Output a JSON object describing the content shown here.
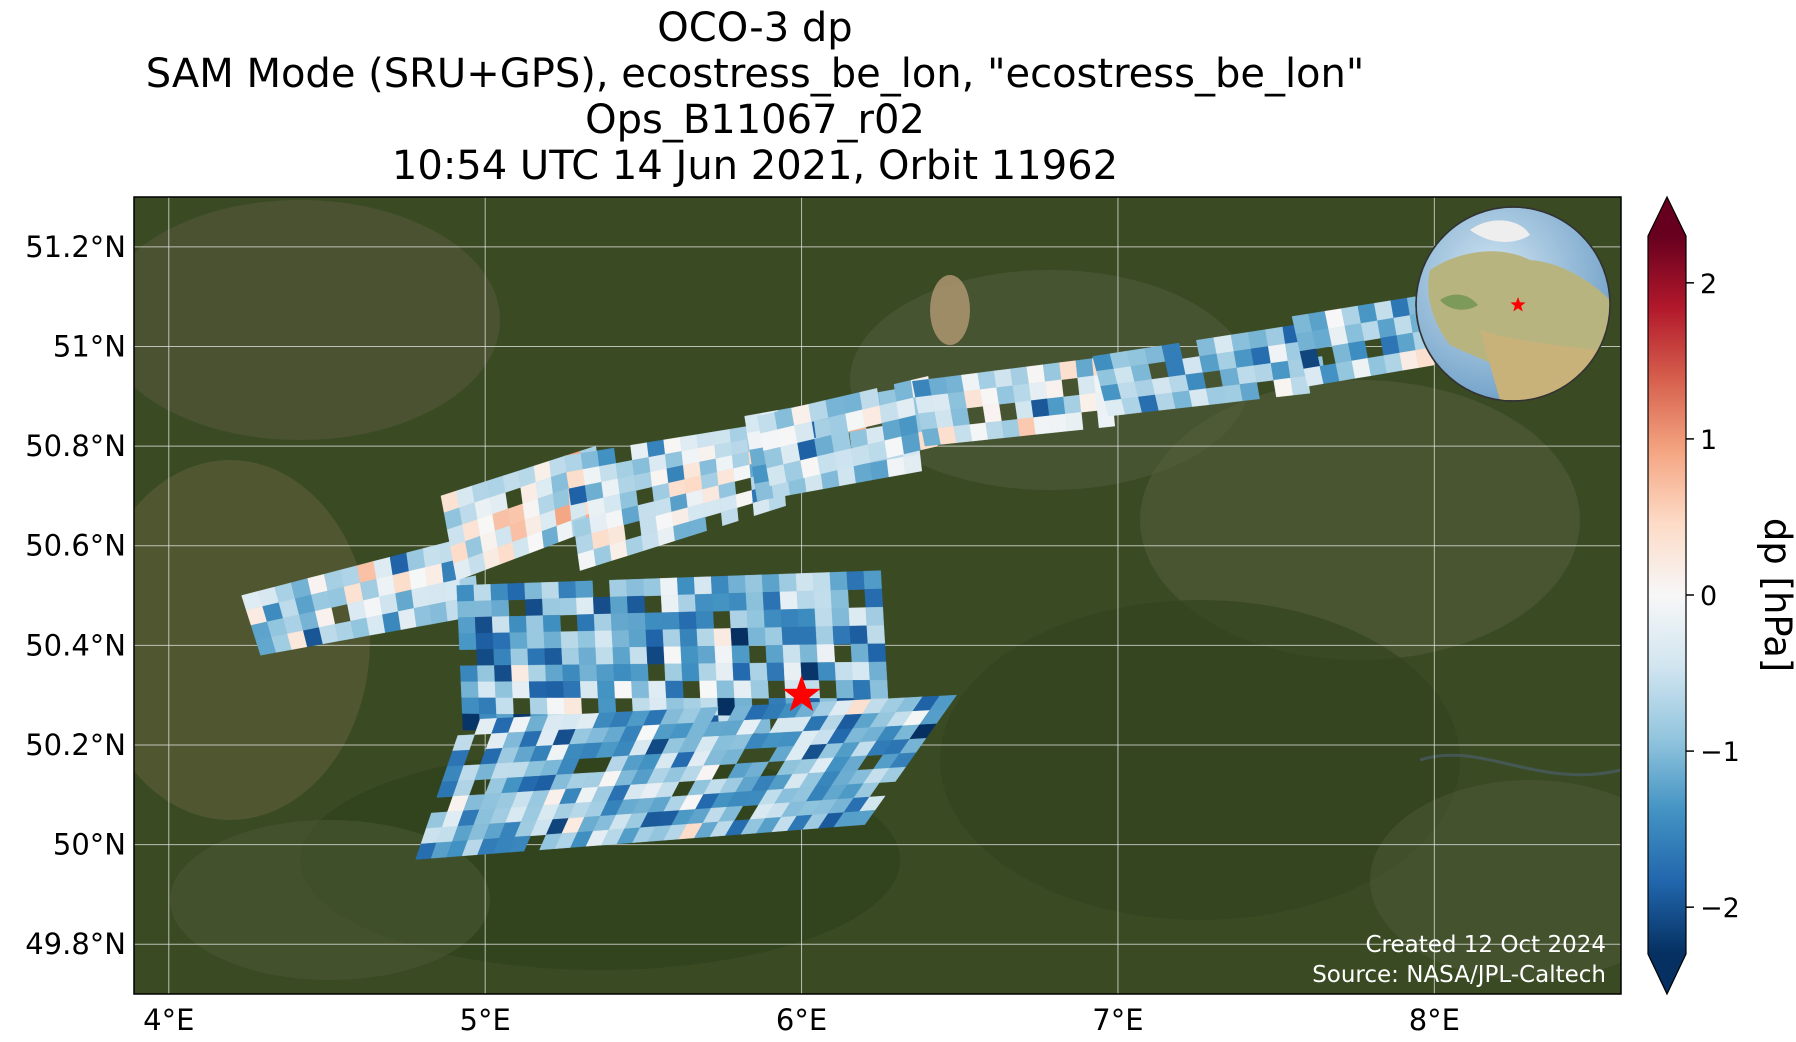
{
  "title_lines": [
    "OCO-3 dp",
    "SAM Mode (SRU+GPS), ecostress_be_lon, \"ecostress_be_lon\"",
    "Ops_B11067_r02",
    "10:54 UTC 14 Jun 2021, Orbit 11962"
  ],
  "map": {
    "lon_range": [
      3.89,
      8.59
    ],
    "lat_range": [
      49.7,
      51.3
    ],
    "lon_ticks": [
      {
        "value": 4,
        "label": "4°E"
      },
      {
        "value": 5,
        "label": "5°E"
      },
      {
        "value": 6,
        "label": "6°E"
      },
      {
        "value": 7,
        "label": "7°E"
      },
      {
        "value": 8,
        "label": "8°E"
      }
    ],
    "lat_ticks": [
      {
        "value": 49.8,
        "label": "49.8°N"
      },
      {
        "value": 50.0,
        "label": "50°N"
      },
      {
        "value": 50.2,
        "label": "50.2°N"
      },
      {
        "value": 50.4,
        "label": "50.4°N"
      },
      {
        "value": 50.6,
        "label": "50.6°N"
      },
      {
        "value": 50.8,
        "label": "50.8°N"
      },
      {
        "value": 51.0,
        "label": "51°N"
      },
      {
        "value": 51.2,
        "label": "51.2°N"
      }
    ],
    "target": {
      "lon": 6.0,
      "lat": 50.3,
      "marker": "star",
      "color": "#ff0000"
    },
    "basemap": "satellite imagery",
    "inset_globe": {
      "marker": "star",
      "marker_color": "#ff0000"
    },
    "credit_lines": [
      "Created 12 Oct 2024",
      "Source: NASA/JPL-Caltech"
    ]
  },
  "colorbar": {
    "label": "dp [hPa]",
    "range": [
      -2.3,
      2.3
    ],
    "extend": "both",
    "colormap": "RdBu_r",
    "ticks": [
      {
        "value": 2,
        "label": "2"
      },
      {
        "value": 1,
        "label": "1"
      },
      {
        "value": 0,
        "label": "0"
      },
      {
        "value": -1,
        "label": "−1"
      },
      {
        "value": -2,
        "label": "−2"
      }
    ]
  },
  "sounding_strips": [
    {
      "corners": [
        [
          4.23,
          50.5
        ],
        [
          4.96,
          50.62
        ],
        [
          4.98,
          50.46
        ],
        [
          4.29,
          50.38
        ]
      ],
      "mean_dp": -0.6
    },
    {
      "corners": [
        [
          4.86,
          50.7
        ],
        [
          5.35,
          50.8
        ],
        [
          5.37,
          50.64
        ],
        [
          4.91,
          50.53
        ]
      ],
      "mean_dp": -0.2
    },
    {
      "corners": [
        [
          5.25,
          50.78
        ],
        [
          5.93,
          50.85
        ],
        [
          5.95,
          50.68
        ],
        [
          5.3,
          50.55
        ]
      ],
      "mean_dp": -0.5
    },
    {
      "corners": [
        [
          5.82,
          50.86
        ],
        [
          6.35,
          50.92
        ],
        [
          6.38,
          50.75
        ],
        [
          5.86,
          50.69
        ]
      ],
      "mean_dp": -0.7
    },
    {
      "corners": [
        [
          5.86,
          50.86
        ],
        [
          6.4,
          50.94
        ],
        [
          6.43,
          50.8
        ],
        [
          5.9,
          50.72
        ]
      ],
      "mean_dp": -0.6
    },
    {
      "corners": [
        [
          6.35,
          50.93
        ],
        [
          6.97,
          50.98
        ],
        [
          6.99,
          50.84
        ],
        [
          6.39,
          50.8
        ]
      ],
      "mean_dp": -0.4
    },
    {
      "corners": [
        [
          6.92,
          50.98
        ],
        [
          7.63,
          51.05
        ],
        [
          7.66,
          50.91
        ],
        [
          6.97,
          50.86
        ]
      ],
      "mean_dp": -0.9
    },
    {
      "corners": [
        [
          7.55,
          51.06
        ],
        [
          8.33,
          51.14
        ],
        [
          8.35,
          51.0
        ],
        [
          7.6,
          50.92
        ]
      ],
      "mean_dp": -0.7
    },
    {
      "corners": [
        [
          4.91,
          50.52
        ],
        [
          6.25,
          50.55
        ],
        [
          6.28,
          50.22
        ],
        [
          4.93,
          50.23
        ]
      ],
      "mean_dp": -1.1
    },
    {
      "corners": [
        [
          4.93,
          50.25
        ],
        [
          6.49,
          50.3
        ],
        [
          6.2,
          50.04
        ],
        [
          4.78,
          49.97
        ]
      ],
      "mean_dp": -1.0
    }
  ]
}
